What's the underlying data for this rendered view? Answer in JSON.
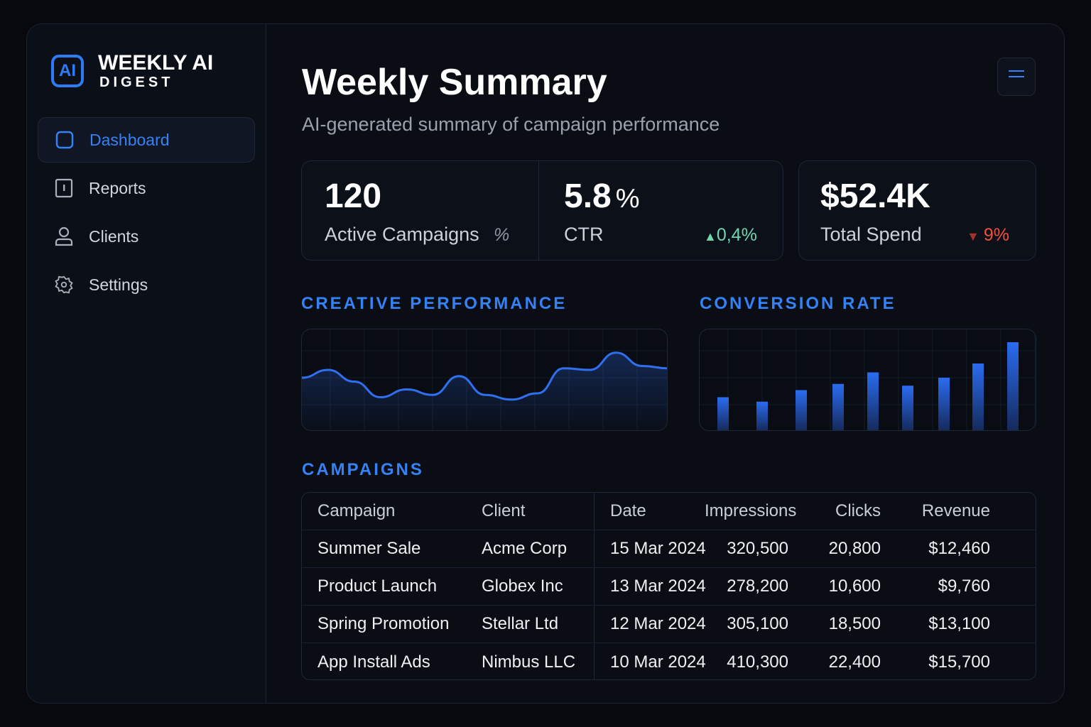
{
  "brand": {
    "mark": "AI",
    "line1": "WEEKLY AI",
    "line2": "DIGEST"
  },
  "sidebar": {
    "items": [
      {
        "label": "Dashboard",
        "icon": "square-icon",
        "active": true
      },
      {
        "label": "Reports",
        "icon": "report-icon"
      },
      {
        "label": "Clients",
        "icon": "user-icon"
      },
      {
        "label": "Settings",
        "icon": "gear-icon"
      }
    ]
  },
  "header": {
    "title": "Weekly Summary",
    "subtitle": "AI-generated summary of campaign performance",
    "menu_icon": "menu-icon"
  },
  "kpis": [
    {
      "value": "120",
      "label": "Active Campaigns",
      "delta": "%",
      "delta_color": "#8f96a3"
    },
    {
      "value": "5.8",
      "unit": "%",
      "label": "CTR",
      "delta": "0,4%",
      "direction": "up",
      "delta_color": "#6fd6b0"
    },
    {
      "value": "$52.4K",
      "label": "Total Spend",
      "delta": "9%",
      "direction": "down",
      "delta_color": "#f0503c"
    }
  ],
  "sections": {
    "creative": "CREATIVE PERFORMANCE",
    "conversion": "CONVERSION RATE",
    "campaigns": "CAMPAIGNS"
  },
  "chart_data": [
    {
      "type": "area",
      "title": "CREATIVE PERFORMANCE",
      "values": [
        60,
        70,
        55,
        35,
        45,
        38,
        62,
        38,
        32,
        40,
        72,
        70,
        92,
        75,
        72
      ],
      "grid": true,
      "color": "#2f6ff0"
    },
    {
      "type": "bar",
      "title": "CONVERSION RATE",
      "values": [
        38,
        33,
        46,
        53,
        66,
        51,
        60,
        76,
        100
      ],
      "grid": true,
      "color": "#2a6cf0"
    }
  ],
  "table": {
    "headers": [
      "Campaign",
      "Client",
      "Date",
      "Impressions",
      "Clicks",
      "Revenue"
    ],
    "rows": [
      [
        "Summer Sale",
        "Acme Corp",
        "15 Mar 2024",
        "320,500",
        "20,800",
        "$12,460"
      ],
      [
        "Product Launch",
        "Globex Inc",
        "13 Mar 2024",
        "278,200",
        "10,600",
        "$9,760"
      ],
      [
        "Spring Promotion",
        "Stellar Ltd",
        "12 Mar 2024",
        "305,100",
        "18,500",
        "$13,100"
      ],
      [
        "App Install Ads",
        "Nimbus LLC",
        "10 Mar 2024",
        "410,300",
        "22,400",
        "$15,700"
      ]
    ]
  }
}
